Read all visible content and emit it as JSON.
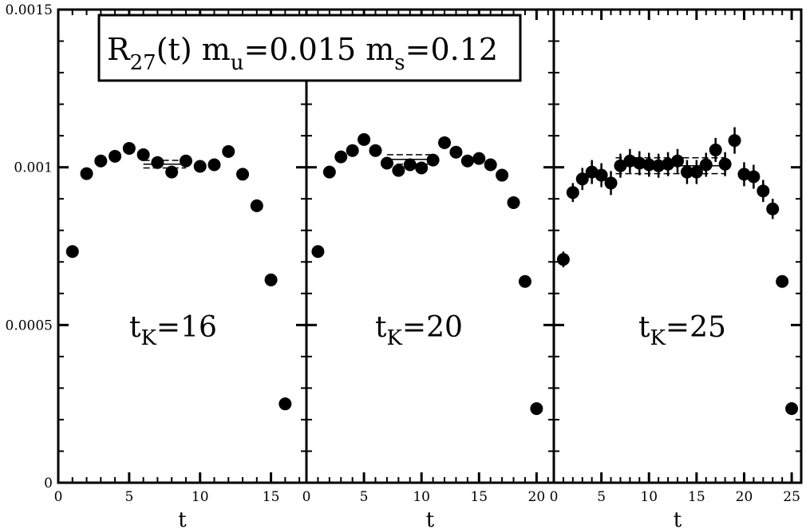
{
  "chart_data": {
    "type": "scatter",
    "title": {
      "R": "R",
      "R_sub": "27",
      "t": "(t) m",
      "mu_sub": "u",
      "mu_val": "=0.015 m",
      "ms_sub": "s",
      "ms_val": "=0.12"
    },
    "ylim": [
      0,
      0.0015
    ],
    "y_ticks": [
      "0",
      "0.0005",
      "0.001",
      "0.0015"
    ],
    "grid": false,
    "panels": [
      {
        "xlabel": "t",
        "annotation": {
          "t": "t",
          "sub": "K",
          "val": "=16"
        },
        "xlim": [
          0,
          17.5
        ],
        "x_ticks": [
          "0",
          "5",
          "10",
          "15"
        ],
        "fit": {
          "x": [
            6,
            9
          ],
          "value": 0.00101,
          "err": 1.2e-05
        },
        "points": [
          {
            "x": 1,
            "y": 0.000733,
            "err": 1.2e-05
          },
          {
            "x": 2,
            "y": 0.00098,
            "err": 1.2e-05
          },
          {
            "x": 3,
            "y": 0.00102,
            "err": 1.2e-05
          },
          {
            "x": 4,
            "y": 0.001035,
            "err": 1.2e-05
          },
          {
            "x": 5,
            "y": 0.00106,
            "err": 1.4e-05
          },
          {
            "x": 6,
            "y": 0.00104,
            "err": 1.4e-05
          },
          {
            "x": 7,
            "y": 0.001015,
            "err": 1.4e-05
          },
          {
            "x": 8,
            "y": 0.000985,
            "err": 1.4e-05
          },
          {
            "x": 9,
            "y": 0.00102,
            "err": 1.4e-05
          },
          {
            "x": 10,
            "y": 0.001003,
            "err": 1.4e-05
          },
          {
            "x": 11,
            "y": 0.001008,
            "err": 1.4e-05
          },
          {
            "x": 12,
            "y": 0.00105,
            "err": 1.4e-05
          },
          {
            "x": 13,
            "y": 0.000978,
            "err": 1.4e-05
          },
          {
            "x": 14,
            "y": 0.000878,
            "err": 1.2e-05
          },
          {
            "x": 15,
            "y": 0.000643,
            "err": 1.2e-05
          },
          {
            "x": 16,
            "y": 0.00025,
            "err": 1e-05
          }
        ]
      },
      {
        "xlabel": "t",
        "annotation": {
          "t": "t",
          "sub": "K",
          "val": "=20"
        },
        "xlim": [
          0,
          21.5
        ],
        "x_ticks": [
          "0",
          "5",
          "10",
          "15",
          "20"
        ],
        "fit": {
          "x": [
            7,
            11
          ],
          "value": 0.001025,
          "err": 1.5e-05
        },
        "points": [
          {
            "x": 1,
            "y": 0.000733,
            "err": 1.4e-05
          },
          {
            "x": 2,
            "y": 0.000985,
            "err": 1.4e-05
          },
          {
            "x": 3,
            "y": 0.001033,
            "err": 1.6e-05
          },
          {
            "x": 4,
            "y": 0.001053,
            "err": 1.6e-05
          },
          {
            "x": 5,
            "y": 0.001088,
            "err": 1.8e-05
          },
          {
            "x": 6,
            "y": 0.001053,
            "err": 1.8e-05
          },
          {
            "x": 7,
            "y": 0.001013,
            "err": 1.8e-05
          },
          {
            "x": 8,
            "y": 0.00099,
            "err": 1.8e-05
          },
          {
            "x": 9,
            "y": 0.001008,
            "err": 1.8e-05
          },
          {
            "x": 10,
            "y": 0.000998,
            "err": 1.8e-05
          },
          {
            "x": 11,
            "y": 0.001023,
            "err": 1.8e-05
          },
          {
            "x": 12,
            "y": 0.001078,
            "err": 1.8e-05
          },
          {
            "x": 13,
            "y": 0.001048,
            "err": 1.8e-05
          },
          {
            "x": 14,
            "y": 0.00102,
            "err": 1.8e-05
          },
          {
            "x": 15,
            "y": 0.001028,
            "err": 1.8e-05
          },
          {
            "x": 16,
            "y": 0.001008,
            "err": 1.8e-05
          },
          {
            "x": 17,
            "y": 0.000975,
            "err": 1.6e-05
          },
          {
            "x": 18,
            "y": 0.000888,
            "err": 1.4e-05
          },
          {
            "x": 19,
            "y": 0.000638,
            "err": 1.2e-05
          },
          {
            "x": 20,
            "y": 0.000235,
            "err": 1e-05
          }
        ]
      },
      {
        "xlabel": "t",
        "annotation": {
          "t": "t",
          "sub": "K",
          "val": "=25"
        },
        "xlim": [
          0,
          26
        ],
        "x_ticks": [
          "0",
          "5",
          "10",
          "15",
          "20",
          "25"
        ],
        "fit": {
          "x": [
            6.5,
            18
          ],
          "value": 0.001005,
          "err": 2.5e-05
        },
        "points": [
          {
            "x": 1,
            "y": 0.000708,
            "err": 2.5e-05
          },
          {
            "x": 2,
            "y": 0.00092,
            "err": 3e-05
          },
          {
            "x": 3,
            "y": 0.000963,
            "err": 3.5e-05
          },
          {
            "x": 4,
            "y": 0.000985,
            "err": 3.8e-05
          },
          {
            "x": 5,
            "y": 0.000975,
            "err": 3.8e-05
          },
          {
            "x": 6,
            "y": 0.00095,
            "err": 3.8e-05
          },
          {
            "x": 7,
            "y": 0.001005,
            "err": 3.8e-05
          },
          {
            "x": 8,
            "y": 0.00102,
            "err": 3.8e-05
          },
          {
            "x": 9,
            "y": 0.001013,
            "err": 3.8e-05
          },
          {
            "x": 10,
            "y": 0.001008,
            "err": 3.8e-05
          },
          {
            "x": 11,
            "y": 0.001005,
            "err": 3.8e-05
          },
          {
            "x": 12,
            "y": 0.00101,
            "err": 3.8e-05
          },
          {
            "x": 13,
            "y": 0.00102,
            "err": 3.8e-05
          },
          {
            "x": 14,
            "y": 0.000985,
            "err": 3.8e-05
          },
          {
            "x": 15,
            "y": 0.000985,
            "err": 3.8e-05
          },
          {
            "x": 16,
            "y": 0.001008,
            "err": 3.8e-05
          },
          {
            "x": 17,
            "y": 0.001055,
            "err": 3.8e-05
          },
          {
            "x": 18,
            "y": 0.00101,
            "err": 3.8e-05
          },
          {
            "x": 19,
            "y": 0.001085,
            "err": 4.2e-05
          },
          {
            "x": 20,
            "y": 0.000978,
            "err": 3.8e-05
          },
          {
            "x": 21,
            "y": 0.00097,
            "err": 3.8e-05
          },
          {
            "x": 22,
            "y": 0.000925,
            "err": 3.5e-05
          },
          {
            "x": 23,
            "y": 0.000868,
            "err": 3.2e-05
          },
          {
            "x": 24,
            "y": 0.000638,
            "err": 1.8e-05
          },
          {
            "x": 25,
            "y": 0.000235,
            "err": 1e-05
          }
        ]
      }
    ]
  }
}
